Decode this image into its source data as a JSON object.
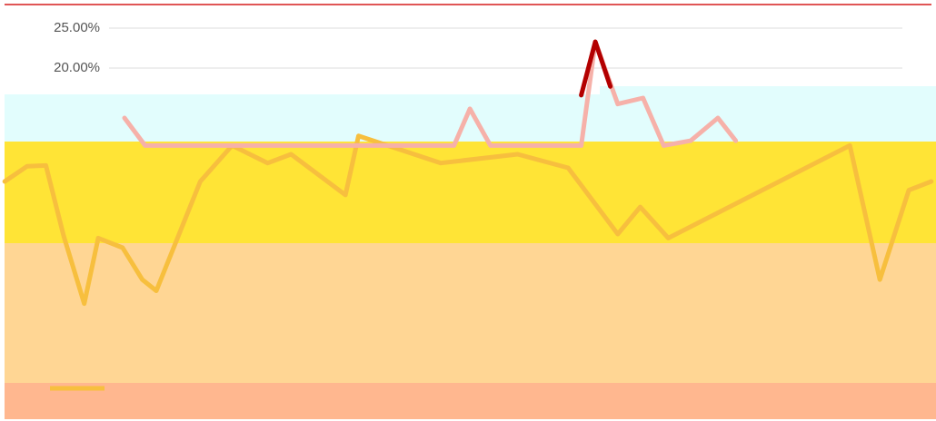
{
  "chart_data": {
    "type": "line",
    "ylim": [
      -20,
      27
    ],
    "yticks": [
      {
        "value": 25,
        "label": "25.00%"
      },
      {
        "value": 20,
        "label": "20.00%"
      }
    ],
    "xlim": [
      0,
      100
    ],
    "grid": true,
    "series": [
      {
        "color": "#f7bf3e",
        "x": [
          0.5,
          2.9,
          4.9,
          6.8,
          9.0,
          10.5,
          13.1,
          15.2,
          16.7,
          21.4,
          24.8,
          28.6,
          31.1,
          36.9,
          38.3,
          47.1,
          55.3,
          60.7,
          66.0,
          68.4,
          71.4,
          90.8,
          94.0,
          97.1,
          99.5
        ],
        "values": [
          5.8,
          7.7,
          7.8,
          -1.0,
          -9.5,
          -1.3,
          -2.5,
          -6.5,
          -7.9,
          5.8,
          10.3,
          8.1,
          9.2,
          4.1,
          11.5,
          8.1,
          9.2,
          7.5,
          -0.8,
          2.6,
          -1.3,
          10.3,
          -6.5,
          4.7,
          5.8
        ]
      },
      {
        "color": "#f6b1a9",
        "x": [
          13.3,
          15.5,
          48.5,
          50.2,
          52.4,
          62.1,
          63.6,
          66.0,
          68.7,
          70.9,
          73.8,
          76.7,
          78.6
        ],
        "values": [
          13.75,
          10.3,
          10.3,
          14.9,
          10.3,
          10.3,
          23.3,
          15.5,
          16.25,
          10.3,
          10.9,
          13.75,
          10.9
        ]
      },
      {
        "color": "#b30000",
        "x": [
          62.1,
          63.6,
          65.2
        ],
        "values": [
          16.6,
          23.3,
          17.7
        ]
      }
    ]
  }
}
